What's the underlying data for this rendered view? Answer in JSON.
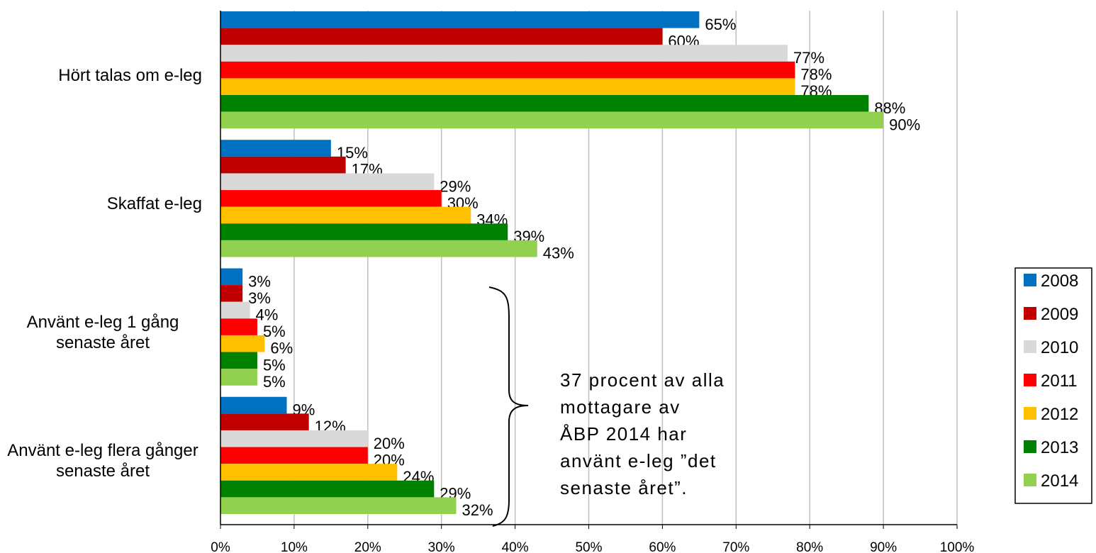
{
  "chart_data": {
    "type": "hbar",
    "categories": [
      "Hört talas om e-leg",
      "Skaffat e-leg",
      "Använt e-leg 1 gång senaste året",
      "Använt e-leg flera gånger senaste året"
    ],
    "series": [
      {
        "name": "2008",
        "color": "#0070c0",
        "values": [
          65,
          15,
          3,
          9
        ],
        "value_labels": [
          "65%",
          "15%",
          "3%",
          "9%"
        ]
      },
      {
        "name": "2009",
        "color": "#c00000",
        "values": [
          60,
          17,
          3,
          12
        ],
        "value_labels": [
          "60%",
          "17%",
          "3%",
          "12%"
        ]
      },
      {
        "name": "2010",
        "color": "#d9d9d9",
        "values": [
          77,
          29,
          4,
          20
        ],
        "value_labels": [
          "77%",
          "29%",
          "4%",
          "20%"
        ]
      },
      {
        "name": "2011",
        "color": "#ff0000",
        "values": [
          78,
          30,
          5,
          20
        ],
        "value_labels": [
          "78%",
          "30%",
          "5%",
          "20%"
        ]
      },
      {
        "name": "2012",
        "color": "#ffc000",
        "values": [
          78,
          34,
          6,
          24
        ],
        "value_labels": [
          "78%",
          "34%",
          "6%",
          "24%"
        ]
      },
      {
        "name": "2013",
        "color": "#008000",
        "values": [
          88,
          39,
          5,
          29
        ],
        "value_labels": [
          "88%",
          "39%",
          "5%",
          "29%"
        ]
      },
      {
        "name": "2014",
        "color": "#92d050",
        "values": [
          90,
          43,
          5,
          32
        ],
        "value_labels": [
          "90%",
          "43%",
          "5%",
          "32%"
        ]
      }
    ],
    "xlim": [
      0,
      100
    ],
    "xticks": [
      {
        "value": 0,
        "label": "0%"
      },
      {
        "value": 10,
        "label": "10%"
      },
      {
        "value": 20,
        "label": "20%"
      },
      {
        "value": 30,
        "label": "30%"
      },
      {
        "value": 40,
        "label": "40%"
      },
      {
        "value": 50,
        "label": "50%"
      },
      {
        "value": 60,
        "label": "60%"
      },
      {
        "value": 70,
        "label": "70%"
      },
      {
        "value": 80,
        "label": "80%"
      },
      {
        "value": 90,
        "label": "90%"
      },
      {
        "value": 100,
        "label": "100%"
      }
    ],
    "grid": true,
    "legend": "right",
    "annotation": [
      "37 procent av alla",
      "mottagare av",
      "ÅBP 2014 har",
      "använt e-leg ”det",
      "senaste året”."
    ]
  }
}
